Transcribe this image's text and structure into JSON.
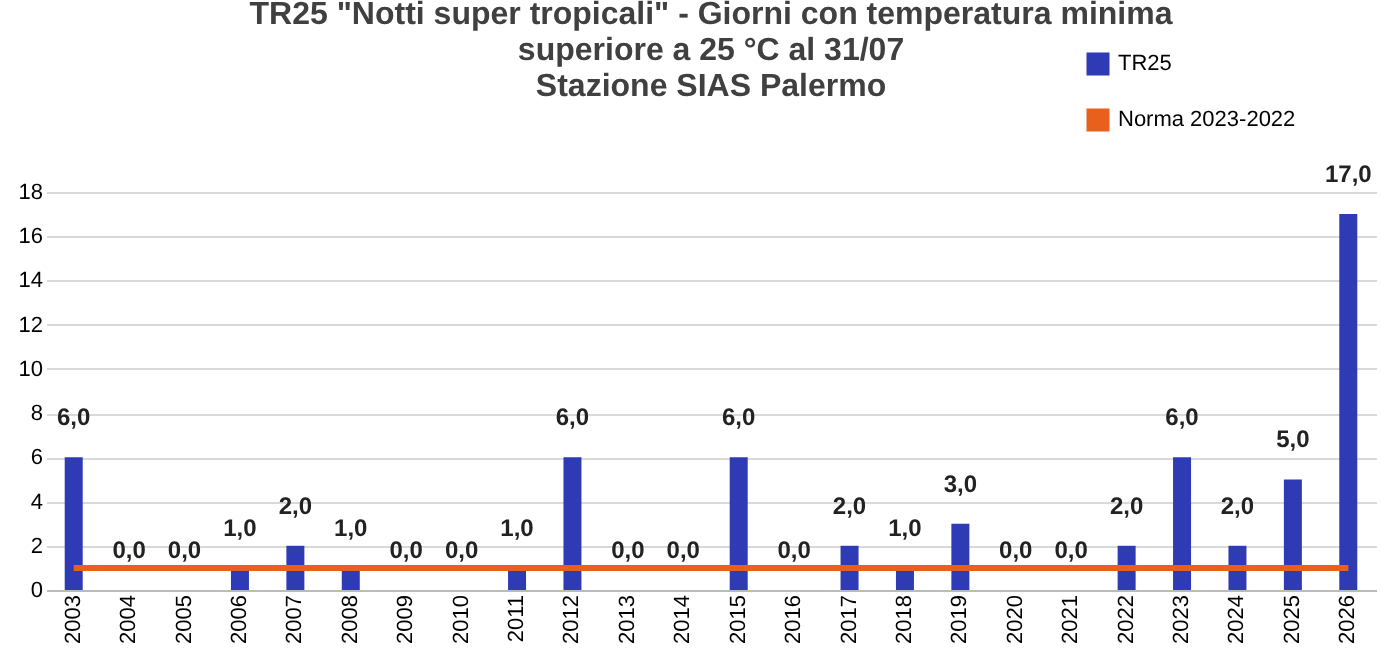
{
  "chart_data": {
    "type": "bar",
    "title": "TR25 \"Notti super tropicali\" - Giorni con temperatura minima\nsuperiore a 25 °C al 31/07\nStazione SIAS Palermo",
    "categories": [
      "2003",
      "2004",
      "2005",
      "2006",
      "2007",
      "2008",
      "2009",
      "2010",
      "2011",
      "2012",
      "2013",
      "2014",
      "2015",
      "2016",
      "2017",
      "2018",
      "2019",
      "2020",
      "2021",
      "2022",
      "2023",
      "2024",
      "2025",
      "2026"
    ],
    "series": [
      {
        "name": "TR25",
        "color": "#2e3bb5",
        "values": [
          6,
          0,
          0,
          1,
          2,
          1,
          0,
          0,
          1,
          6,
          0,
          0,
          6,
          0,
          2,
          1,
          3,
          0,
          0,
          2,
          6,
          2,
          5,
          17
        ],
        "value_labels": [
          "6,0",
          "0,0",
          "0,0",
          "1,0",
          "2,0",
          "1,0",
          "0,0",
          "0,0",
          "1,0",
          "6,0",
          "0,0",
          "0,0",
          "6,0",
          "0,0",
          "2,0",
          "1,0",
          "3,0",
          "0,0",
          "0,0",
          "2,0",
          "6,0",
          "2,0",
          "5,0",
          "17,0"
        ]
      },
      {
        "name": "Norma 2023-2022",
        "color": "#e8601c",
        "type": "line",
        "values": [
          1,
          1,
          1,
          1,
          1,
          1,
          1,
          1,
          1,
          1,
          1,
          1,
          1,
          1,
          1,
          1,
          1,
          1,
          1,
          1,
          1,
          1,
          1,
          1
        ]
      }
    ],
    "ylim": [
      0,
      18
    ],
    "yticks": [
      0,
      2,
      4,
      6,
      8,
      10,
      12,
      14,
      16,
      18
    ],
    "grid": "y",
    "legend": "top right"
  }
}
